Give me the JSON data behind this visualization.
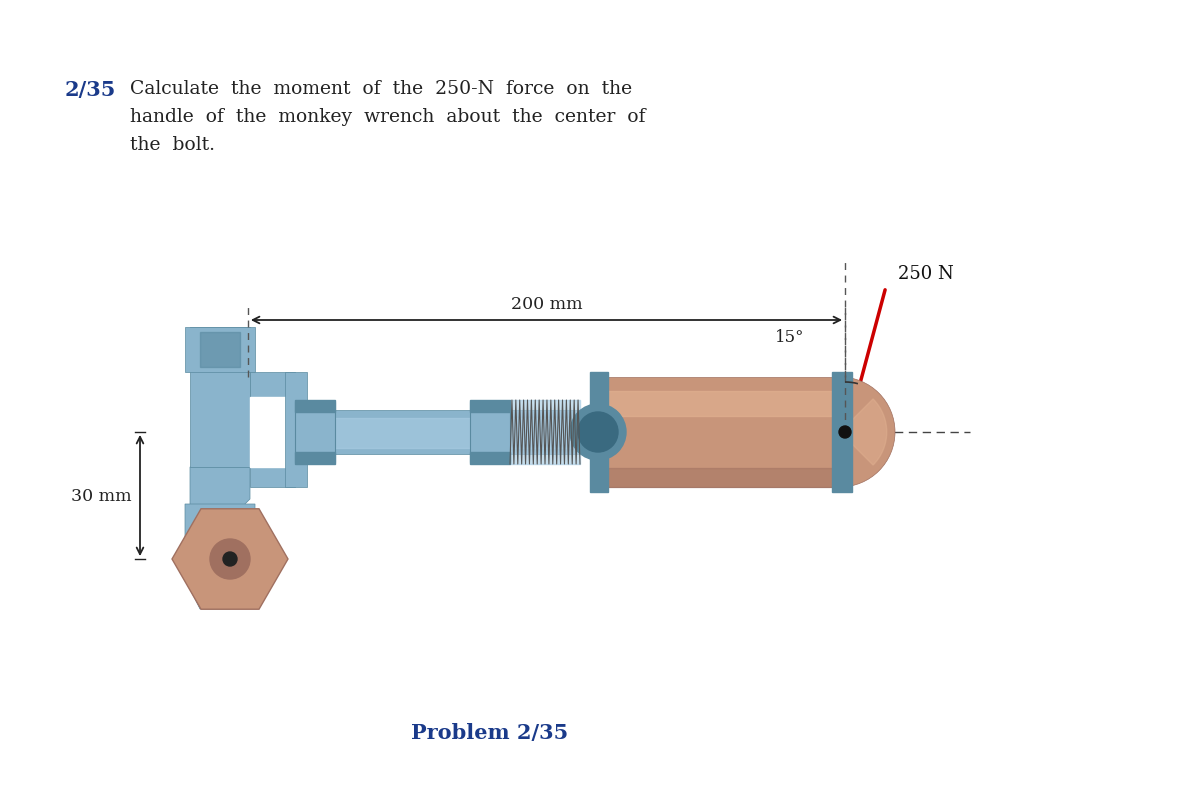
{
  "bg_color": "#ffffff",
  "title_number": "2/35",
  "title_number_color": "#1a3a8a",
  "title_text_color": "#222222",
  "problem_label": "Problem 2/35",
  "problem_label_color": "#1a3a8a",
  "force_label": "250 N",
  "angle_label": "15°",
  "dim_200": "200 mm",
  "dim_30": "30 mm",
  "wrench_color": "#8ab4cc",
  "wrench_dark": "#5a8aa0",
  "wrench_light": "#aed0e6",
  "bolt_color": "#c8957a",
  "bolt_dark": "#a07060",
  "bolt_light": "#e0b090",
  "arrow_color": "#cc0000",
  "dim_color": "#222222",
  "line_color": "#444444"
}
